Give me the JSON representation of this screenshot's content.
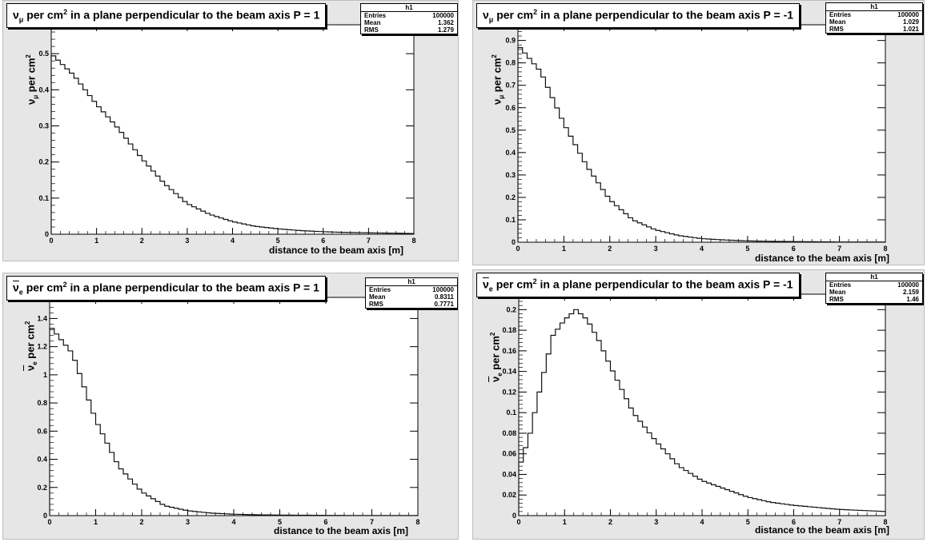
{
  "chart_data": [
    {
      "type": "histogram",
      "title": {
        "sym": "ν",
        "sub": "μ",
        "bar": false,
        "rest": " per cm",
        "sup": "2",
        "tail": " in a plane perpendicular to the beam axis  P = 1"
      },
      "ylabel": {
        "sym": "ν",
        "sub": "μ",
        "bar": false,
        "rest": " per cm",
        "sup": "2"
      },
      "xlabel": "distance to the beam axis [m]",
      "stats": {
        "name": "h1",
        "entries": "100000",
        "mean": "1.362",
        "rms": "1.279"
      },
      "xlim": [
        0,
        8
      ],
      "ylim": [
        0,
        0.58
      ],
      "xticks": [
        "0",
        "1",
        "2",
        "3",
        "4",
        "5",
        "6",
        "7",
        "8"
      ],
      "yticks": [
        "0",
        "0.1",
        "0.2",
        "0.3",
        "0.4",
        "0.5"
      ],
      "x": [
        0,
        0.5,
        1,
        1.5,
        2,
        2.5,
        3,
        3.5,
        4,
        4.5,
        5,
        5.5,
        6,
        6.5,
        7,
        7.5,
        8
      ],
      "values": [
        0.5,
        0.44,
        0.36,
        0.29,
        0.21,
        0.14,
        0.085,
        0.055,
        0.035,
        0.022,
        0.015,
        0.01,
        0.007,
        0.005,
        0.004,
        0.003,
        0.002
      ]
    },
    {
      "type": "histogram",
      "title": {
        "sym": "ν",
        "sub": "μ",
        "bar": false,
        "rest": " per cm",
        "sup": "2",
        "tail": " in a plane perpendicular to the beam axis  P = -1"
      },
      "ylabel": {
        "sym": "ν",
        "sub": "μ",
        "bar": false,
        "rest": " per cm",
        "sup": "2"
      },
      "xlabel": "distance to the beam axis [m]",
      "stats": {
        "name": "h1",
        "entries": "100000",
        "mean": "1.029",
        "rms": "1.021"
      },
      "xlim": [
        0,
        8
      ],
      "ylim": [
        0,
        0.97
      ],
      "xticks": [
        "0",
        "1",
        "2",
        "3",
        "4",
        "5",
        "6",
        "7",
        "8"
      ],
      "yticks": [
        "0",
        "0.1",
        "0.2",
        "0.3",
        "0.4",
        "0.5",
        "0.6",
        "0.7",
        "0.8",
        "0.9"
      ],
      "x": [
        0,
        0.5,
        1,
        1.5,
        2,
        2.5,
        3,
        3.5,
        4,
        4.5,
        5,
        5.5,
        6,
        6.5,
        7,
        7.5,
        8
      ],
      "values": [
        0.88,
        0.76,
        0.53,
        0.34,
        0.19,
        0.1,
        0.055,
        0.03,
        0.016,
        0.01,
        0.006,
        0.004,
        0.003,
        0.002,
        0.001,
        0.001,
        0.001
      ]
    },
    {
      "type": "histogram",
      "title": {
        "sym": "ν",
        "sub": "e",
        "bar": true,
        "rest": " per cm",
        "sup": "2",
        "tail": " in a plane perpendicular to the beam axis  P = 1"
      },
      "ylabel": {
        "sym": "ν",
        "sub": "e",
        "bar": true,
        "rest": " per cm",
        "sup": "2"
      },
      "xlabel": "distance to the beam axis [m]",
      "stats": {
        "name": "h1",
        "entries": "100000",
        "mean": "0.8311",
        "rms": "0.7771"
      },
      "xlim": [
        0,
        8
      ],
      "ylim": [
        0,
        1.55
      ],
      "xticks": [
        "0",
        "1",
        "2",
        "3",
        "4",
        "5",
        "6",
        "7",
        "8"
      ],
      "yticks": [
        "0",
        "0.2",
        "0.4",
        "0.6",
        "0.8",
        "1",
        "1.2",
        "1.4"
      ],
      "x": [
        0,
        0.5,
        1,
        1.5,
        2,
        2.5,
        3,
        3.5,
        4,
        4.5,
        5,
        5.5,
        6,
        6.5,
        7,
        7.5,
        8
      ],
      "values": [
        1.35,
        1.15,
        0.68,
        0.35,
        0.17,
        0.07,
        0.035,
        0.018,
        0.01,
        0.006,
        0.004,
        0.003,
        0.002,
        0.001,
        0.001,
        0.001,
        0.001
      ]
    },
    {
      "type": "histogram",
      "title": {
        "sym": "ν",
        "sub": "e",
        "bar": true,
        "rest": " per cm",
        "sup": "2",
        "tail": " in a plane perpendicular to the beam axis  P = -1"
      },
      "ylabel": {
        "sym": "ν",
        "sub": "e",
        "bar": true,
        "rest": " per cm",
        "sup": "2"
      },
      "xlabel": "distance to the beam axis [m]",
      "stats": {
        "name": "h1",
        "entries": "100000",
        "mean": "2.159",
        "rms": "1.46"
      },
      "xlim": [
        0,
        8
      ],
      "ylim": [
        0,
        0.215
      ],
      "xticks": [
        "0",
        "1",
        "2",
        "3",
        "4",
        "5",
        "6",
        "7",
        "8"
      ],
      "yticks": [
        "0",
        "0.02",
        "0.04",
        "0.06",
        "0.08",
        "0.1",
        "0.12",
        "0.14",
        "0.16",
        "0.18",
        "0.2"
      ],
      "x": [
        0,
        0.25,
        0.5,
        0.75,
        1,
        1.25,
        1.5,
        1.75,
        2,
        2.5,
        3,
        3.5,
        4,
        4.5,
        5,
        5.5,
        6,
        6.5,
        7,
        7.5,
        8
      ],
      "values": [
        0.045,
        0.08,
        0.13,
        0.175,
        0.19,
        0.2,
        0.19,
        0.17,
        0.145,
        0.1,
        0.072,
        0.048,
        0.034,
        0.026,
        0.018,
        0.013,
        0.01,
        0.008,
        0.006,
        0.005,
        0.004
      ]
    }
  ]
}
